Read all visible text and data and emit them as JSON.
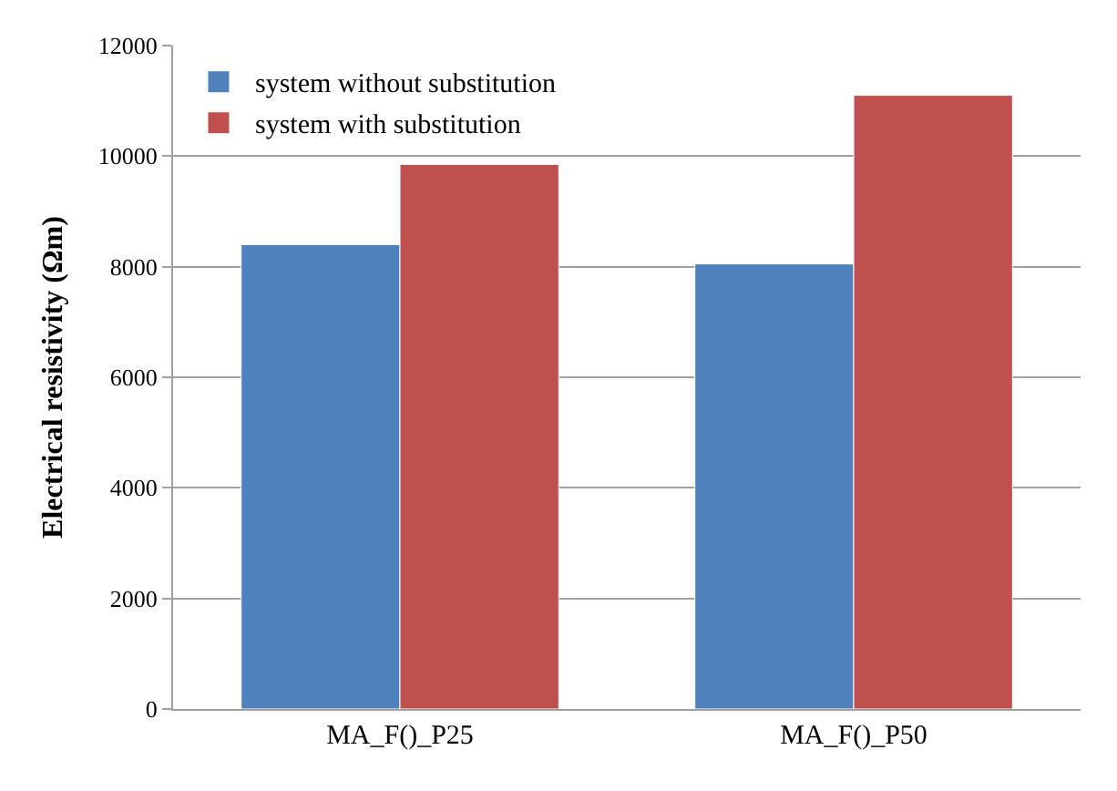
{
  "chart_data": {
    "type": "bar",
    "ylabel": "Electrical resistivity (Ωm)",
    "categories": [
      "MA_F()_P25",
      "MA_F()_P50"
    ],
    "series": [
      {
        "name": "system without substitution",
        "color": "#4f81bd",
        "values": [
          8400,
          8050
        ]
      },
      {
        "name": "system with substitution",
        "color": "#c0504d",
        "values": [
          9850,
          11100
        ]
      }
    ],
    "ylim": [
      0,
      12000
    ],
    "yticks": [
      0,
      2000,
      4000,
      6000,
      8000,
      10000,
      12000
    ],
    "grid": "y",
    "legend": "top left"
  }
}
